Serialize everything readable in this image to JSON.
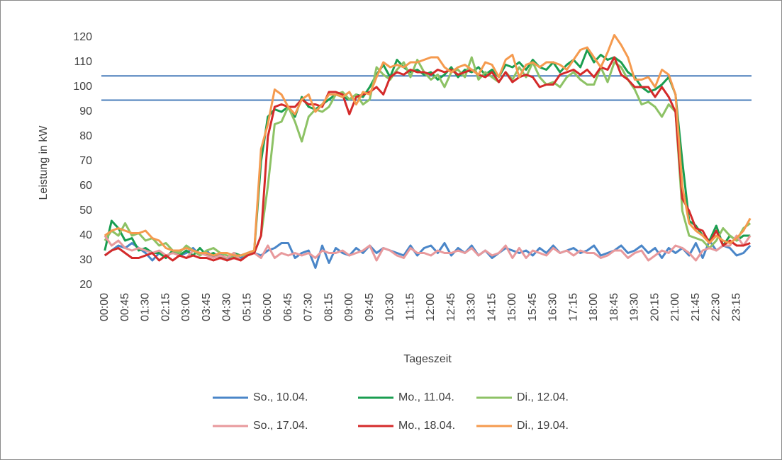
{
  "chart_data": {
    "type": "line",
    "y_label": "Leistung in kW",
    "x_label": "Tageszeit",
    "categories": [
      "00:00",
      null,
      null,
      "00:45",
      null,
      null,
      "01:30",
      null,
      null,
      "02:15",
      null,
      null,
      "03:00",
      null,
      null,
      "03:45",
      null,
      null,
      "04:30",
      null,
      null,
      "05:15",
      null,
      null,
      "06:00",
      null,
      null,
      "06:45",
      null,
      null,
      "07:30",
      null,
      null,
      "08:15",
      null,
      null,
      "09:00",
      null,
      null,
      "09:45",
      null,
      null,
      "10:30",
      null,
      null,
      "11:15",
      null,
      null,
      "12:00",
      null,
      null,
      "12:45",
      null,
      null,
      "13:30",
      null,
      null,
      "14:15",
      null,
      null,
      "15:00",
      null,
      null,
      "15:45",
      null,
      null,
      "16:30",
      null,
      null,
      "17:15",
      null,
      null,
      "18:00",
      null,
      null,
      "18:45",
      null,
      null,
      "19:30",
      null,
      null,
      "20:15",
      null,
      null,
      "21:00",
      null,
      null,
      "21:45",
      null,
      null,
      "22:30",
      null,
      null,
      "23:15",
      null,
      null
    ],
    "ylim": [
      20,
      120
    ],
    "yticks": [
      20,
      30,
      40,
      50,
      60,
      70,
      80,
      90,
      100,
      110,
      120
    ],
    "reference_lines": {
      "color": "#4a7ebb",
      "values": [
        104.5,
        94.7
      ]
    },
    "series": [
      {
        "name": "So., 10.04.",
        "color": "#4a86c8",
        "values": [
          32,
          34,
          36,
          35,
          37,
          35,
          33,
          30,
          33,
          31,
          34,
          32,
          33,
          35,
          32,
          34,
          31,
          33,
          30,
          32,
          31,
          32,
          33,
          32,
          34,
          35,
          37,
          37,
          31,
          33,
          34,
          27,
          36,
          29,
          35,
          33,
          32,
          35,
          33,
          36,
          33,
          35,
          34,
          33,
          32,
          36,
          32,
          35,
          36,
          33,
          37,
          32,
          35,
          33,
          36,
          32,
          34,
          31,
          33,
          35,
          34,
          33,
          34,
          32,
          35,
          33,
          36,
          33,
          34,
          35,
          33,
          34,
          36,
          32,
          33,
          34,
          36,
          33,
          34,
          36,
          33,
          35,
          31,
          35,
          33,
          35,
          32,
          37,
          31,
          38,
          34,
          36,
          35,
          32,
          33,
          36
        ]
      },
      {
        "name": "Mo., 11.04.",
        "color": "#1a9e50",
        "values": [
          34,
          46,
          43,
          38,
          39,
          34,
          35,
          33,
          33,
          31,
          34,
          32,
          34,
          32,
          35,
          32,
          33,
          31,
          31,
          33,
          32,
          33,
          34,
          70,
          88,
          91,
          90,
          92,
          88,
          96,
          92,
          91,
          93,
          95,
          97,
          96,
          95,
          97,
          96,
          100,
          105,
          109,
          104,
          111,
          108,
          106,
          107,
          105,
          106,
          103,
          105,
          108,
          104,
          107,
          106,
          108,
          105,
          107,
          104,
          109,
          108,
          110,
          107,
          111,
          108,
          107,
          110,
          106,
          109,
          111,
          108,
          115,
          110,
          113,
          111,
          112,
          110,
          106,
          104,
          100,
          98,
          99,
          101,
          104,
          97,
          70,
          46,
          44,
          40,
          38,
          44,
          36,
          40,
          38,
          40,
          40
        ]
      },
      {
        "name": "Di., 12.04.",
        "color": "#8dc265",
        "values": [
          38,
          42,
          40,
          45,
          40,
          41,
          38,
          39,
          36,
          37,
          34,
          33,
          36,
          34,
          32,
          34,
          35,
          33,
          32,
          31,
          32,
          32,
          33,
          40,
          60,
          85,
          86,
          92,
          86,
          78,
          88,
          91,
          90,
          92,
          97,
          98,
          95,
          97,
          93,
          95,
          108,
          105,
          103,
          107,
          110,
          104,
          111,
          106,
          103,
          105,
          100,
          106,
          107,
          104,
          112,
          103,
          106,
          104,
          102,
          106,
          103,
          108,
          104,
          110,
          104,
          101,
          102,
          100,
          104,
          106,
          103,
          101,
          101,
          108,
          102,
          110,
          108,
          103,
          99,
          93,
          94,
          92,
          88,
          93,
          90,
          50,
          40,
          39,
          38,
          35,
          38,
          43,
          40,
          38,
          43,
          45
        ]
      },
      {
        "name": "So., 17.04.",
        "color": "#e8999c",
        "values": [
          40,
          36,
          38,
          35,
          34,
          35,
          34,
          33,
          34,
          32,
          33,
          32,
          31,
          34,
          33,
          32,
          31,
          32,
          31,
          33,
          30,
          32,
          33,
          31,
          36,
          31,
          33,
          32,
          33,
          32,
          33,
          31,
          34,
          33,
          33,
          34,
          32,
          33,
          34,
          36,
          30,
          35,
          34,
          32,
          31,
          35,
          33,
          33,
          32,
          34,
          33,
          33,
          34,
          33,
          35,
          32,
          34,
          32,
          33,
          36,
          31,
          35,
          31,
          34,
          33,
          32,
          35,
          33,
          34,
          32,
          34,
          33,
          33,
          31,
          32,
          34,
          34,
          31,
          33,
          34,
          30,
          32,
          34,
          33,
          36,
          35,
          33,
          30,
          34,
          35,
          34,
          36,
          36,
          40,
          36,
          40
        ]
      },
      {
        "name": "Mo., 18.04.",
        "color": "#d42a2a",
        "values": [
          32,
          34,
          35,
          33,
          31,
          31,
          32,
          33,
          30,
          32,
          30,
          32,
          31,
          32,
          31,
          31,
          30,
          31,
          30,
          31,
          30,
          32,
          33,
          40,
          80,
          92,
          93,
          92,
          92,
          95,
          93,
          93,
          92,
          98,
          98,
          97,
          89,
          96,
          97,
          98,
          100,
          97,
          104,
          106,
          105,
          107,
          106,
          106,
          105,
          107,
          106,
          107,
          105,
          106,
          107,
          105,
          104,
          106,
          102,
          106,
          102,
          104,
          105,
          104,
          100,
          101,
          101,
          105,
          106,
          107,
          105,
          107,
          104,
          108,
          107,
          112,
          105,
          103,
          100,
          100,
          100,
          96,
          100,
          96,
          90,
          55,
          50,
          43,
          42,
          37,
          42,
          36,
          38,
          36,
          36,
          37
        ]
      },
      {
        "name": "Di., 19.04.",
        "color": "#f59a4e",
        "values": [
          40,
          42,
          43,
          42,
          41,
          41,
          42,
          39,
          38,
          35,
          34,
          34,
          35,
          34,
          33,
          33,
          32,
          33,
          33,
          32,
          32,
          33,
          34,
          75,
          85,
          99,
          97,
          92,
          89,
          95,
          97,
          90,
          93,
          97,
          97,
          96,
          98,
          93,
          98,
          97,
          104,
          110,
          108,
          109,
          108,
          110,
          110,
          111,
          112,
          112,
          108,
          106,
          108,
          109,
          107,
          105,
          110,
          109,
          104,
          111,
          113,
          104,
          109,
          110,
          108,
          110,
          110,
          109,
          107,
          111,
          115,
          116,
          112,
          108,
          114,
          121,
          117,
          112,
          103,
          103,
          104,
          100,
          107,
          105,
          97,
          60,
          45,
          42,
          40,
          37,
          40,
          38,
          37,
          39,
          42,
          47
        ]
      }
    ]
  }
}
